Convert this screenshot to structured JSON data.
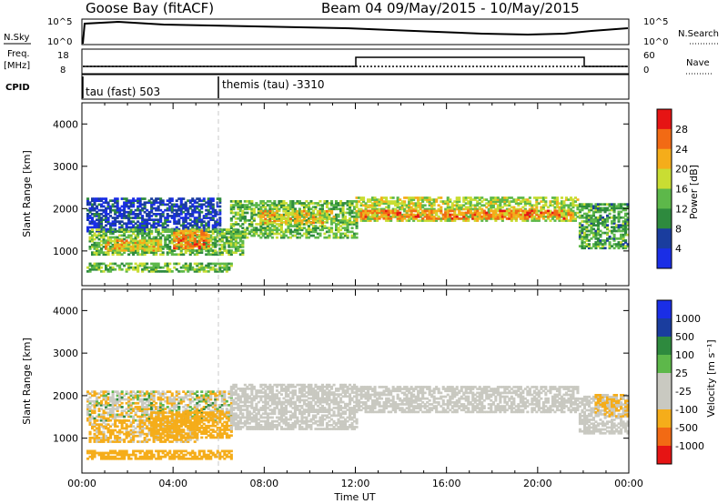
{
  "header": {
    "station": "Goose Bay (fitACF)",
    "beam_date": "Beam 04  09/May/2015 - 10/May/2015"
  },
  "strip": {
    "nsky_label": "N.Sky",
    "nsky_ticks": [
      "10^5",
      "10^0"
    ],
    "nsearch_label": "N.Search",
    "nsearch_ticks": [
      "10^5",
      "10^0"
    ],
    "freq_label": "Freq.",
    "freq_unit": "[MHz]",
    "freq_ticks": [
      "18",
      "8"
    ],
    "nave_label": "Nave",
    "nave_ticks": [
      "60",
      "0"
    ],
    "cpid_label": "CPID",
    "cpid_entries": [
      "tau (fast) 503",
      "themis (tau) -3310"
    ]
  },
  "colors": {
    "power_scale": [
      "#1a2ee6",
      "#1a3d9e",
      "#2e8a3e",
      "#5db84a",
      "#c9dd33",
      "#f5ad1a",
      "#f26a14",
      "#e61414"
    ],
    "velocity_scale": [
      "#e61414",
      "#f26a14",
      "#f5ad1a",
      "#c9c9c1",
      "#c9c9c1",
      "#5db84a",
      "#2e8a3e",
      "#1a3d9e",
      "#1a2ee6"
    ],
    "ground_scatter": "#c9c9c1"
  },
  "chart_data": [
    {
      "type": "heatmap",
      "title": "Power",
      "xlabel": "Time UT",
      "ylabel": "Slant Range [km]",
      "x_ticks": [
        "00:00",
        "04:00",
        "08:00",
        "12:00",
        "16:00",
        "20:00",
        "00:00"
      ],
      "y_ticks": [
        "1000",
        "2000",
        "3000",
        "4000"
      ],
      "xlim_hours": [
        0,
        24
      ],
      "ylim_km": [
        180,
        4500
      ],
      "colorbar_label": "Power [dB]",
      "colorbar_ticks": [
        "4",
        "8",
        "12",
        "16",
        "20",
        "24",
        "28"
      ],
      "vline_hour": 6,
      "regions": [
        {
          "t": [
            0.2,
            6.0
          ],
          "r": [
            1450,
            2250
          ],
          "v": 5
        },
        {
          "t": [
            0.3,
            7.0
          ],
          "r": [
            900,
            1500
          ],
          "v": 14
        },
        {
          "t": [
            1.0,
            3.5
          ],
          "r": [
            1000,
            1250
          ],
          "v": 20
        },
        {
          "t": [
            4.0,
            5.5
          ],
          "r": [
            1050,
            1500
          ],
          "v": 24
        },
        {
          "t": [
            6.5,
            12.0
          ],
          "r": [
            1300,
            2200
          ],
          "v": 14
        },
        {
          "t": [
            7.8,
            11.0
          ],
          "r": [
            1650,
            1950
          ],
          "v": 20
        },
        {
          "t": [
            12.0,
            21.8
          ],
          "r": [
            1700,
            2250
          ],
          "v": 17
        },
        {
          "t": [
            12.2,
            21.5
          ],
          "r": [
            1750,
            1950
          ],
          "v": 24
        },
        {
          "t": [
            21.8,
            24.0
          ],
          "r": [
            1050,
            2100
          ],
          "v": 12
        },
        {
          "t": [
            0.2,
            6.5
          ],
          "r": [
            500,
            700
          ],
          "v": 14
        }
      ]
    },
    {
      "type": "heatmap",
      "title": "Velocity",
      "xlabel": "Time UT",
      "ylabel": "Slant Range [km]",
      "x_ticks": [
        "00:00",
        "04:00",
        "08:00",
        "12:00",
        "16:00",
        "20:00",
        "00:00"
      ],
      "y_ticks": [
        "1000",
        "2000",
        "3000",
        "4000"
      ],
      "xlim_hours": [
        0,
        24
      ],
      "ylim_km": [
        180,
        4500
      ],
      "colorbar_label": "Velocity [m s⁻¹]",
      "colorbar_ticks": [
        "1000",
        "500",
        "100",
        "25",
        "-25",
        "-100",
        "-500",
        "-1000"
      ],
      "vline_hour": 6,
      "regions": [
        {
          "t": [
            0.2,
            6.5
          ],
          "r": [
            1400,
            2100
          ],
          "v": -60
        },
        {
          "t": [
            0.3,
            5.0
          ],
          "r": [
            900,
            1400
          ],
          "v": -150
        },
        {
          "t": [
            3.0,
            6.5
          ],
          "r": [
            1000,
            1600
          ],
          "v": -300
        },
        {
          "t": [
            6.5,
            12.0
          ],
          "r": [
            1200,
            2250
          ],
          "v": 0
        },
        {
          "t": [
            12.0,
            21.8
          ],
          "r": [
            1600,
            2200
          ],
          "v": 0
        },
        {
          "t": [
            21.8,
            24.0
          ],
          "r": [
            1100,
            2000
          ],
          "v": 0
        },
        {
          "t": [
            22.5,
            24.0
          ],
          "r": [
            1500,
            2000
          ],
          "v": -120
        },
        {
          "t": [
            0.2,
            6.5
          ],
          "r": [
            500,
            700
          ],
          "v": -200
        }
      ]
    }
  ]
}
